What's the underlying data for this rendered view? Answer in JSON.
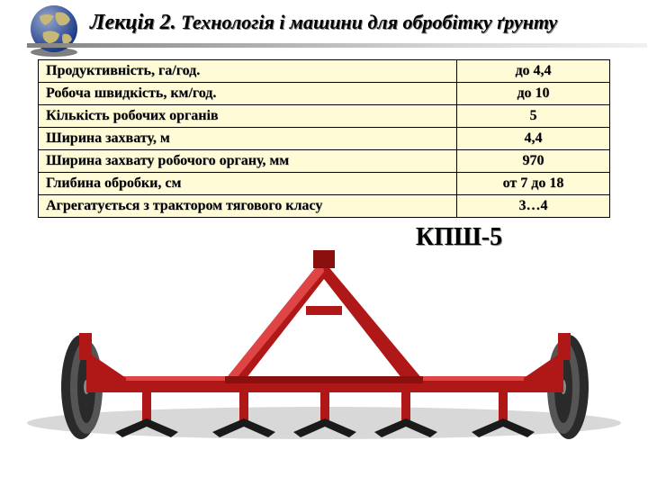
{
  "header": {
    "lead": "Лекція 2.",
    "rest": " Технологія і машини для обробітку ґрунту",
    "title_fontsize": 22,
    "line_gradient": [
      "#828282",
      "#f0f0f0"
    ]
  },
  "globe": {
    "ocean_color": "#1a3a8a",
    "land_color": "#c8b878",
    "shadow_color": "#2a2a2a"
  },
  "table": {
    "background": "#fffbd6",
    "border_color": "#000000",
    "font_size": 16,
    "label_col_width_ratio": 0.73,
    "value_col_width_ratio": 0.27,
    "rows": [
      {
        "label": "Продуктивність, га/год.",
        "value": "до 4,4"
      },
      {
        "label": "Робоча швидкість, км/год.",
        "value": "до 10"
      },
      {
        "label": "Кількість робочих органів",
        "value": "5"
      },
      {
        "label": "Ширина захвату, м",
        "value": "4,4"
      },
      {
        "label": "Ширина захвату робочого органу, мм",
        "value": "970"
      },
      {
        "label": "Глибина обробки, см",
        "value": "от 7 до 18"
      },
      {
        "label": "Агрегатується з трактором тягового класу",
        "value": "3…4"
      }
    ]
  },
  "model": {
    "name": "КПШ-5",
    "fontsize": 28
  },
  "machine": {
    "frame_color": "#b01818",
    "frame_highlight": "#e04545",
    "wheel_color": "#2a2a2a",
    "wheel_rim": "#555555",
    "blade_color": "#1a1a1a",
    "ground_shadow": "#d8d8d8"
  }
}
